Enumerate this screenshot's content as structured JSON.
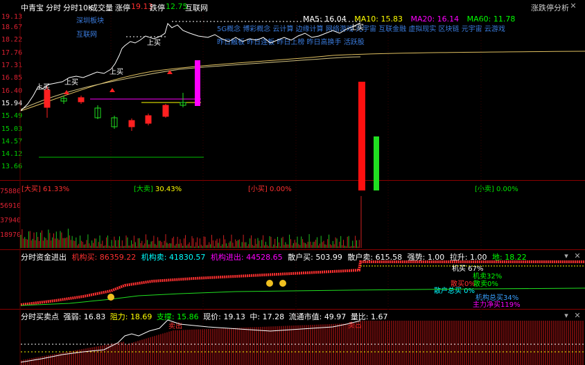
{
  "topbar": {
    "name": "中青宝",
    "tabs": [
      "分时",
      "分时10K",
      "成交量"
    ],
    "limit_up_label": "涨停",
    "limit_up_value": "19.13",
    "limit_down_label": "跌停",
    "limit_down_value": "12.75",
    "sector": "互联网",
    "right_label": "涨跌停分析"
  },
  "yaxis": [
    "19.13",
    "18.67",
    "18.22",
    "17.76",
    "17.31",
    "16.85",
    "16.40",
    "15.94",
    "15.49",
    "15.03",
    "14.57",
    "14.12",
    "13.66"
  ],
  "vol_axis": [
    "75880",
    "56910",
    "37940",
    "18970"
  ],
  "ma": {
    "ma5_label": "MA5:",
    "ma5": "16.04",
    "ma10_label": "MA10:",
    "ma10": "15.83",
    "ma20_label": "MA20:",
    "ma20": "16.14",
    "ma60_label": "MA60:",
    "ma60": "11.78"
  },
  "colors": {
    "ma5": "#ffffff",
    "ma10": "#ffff00",
    "ma20": "#ff00ff",
    "ma60": "#00ff00",
    "up": "#ff2020",
    "down": "#00e000"
  },
  "concepts_left": [
    "深圳板块",
    "互联网"
  ],
  "concepts_row1": "5G概念  博彩概念  云计算  边缘计算  网络游戏  元宇宙  互联金融  虚拟现实  区块链  元宇宙  云游戏",
  "concepts_row2": "昨日触板  昨日连板  昨日上榜  昨日高换手  活跃股",
  "signals": [
    "上买",
    "上买",
    "上买",
    "上买",
    "上买"
  ],
  "buy_sell": {
    "big_buy_label": "[大买]",
    "big_buy": "61.33%",
    "big_sell_label": "[大卖]",
    "big_sell": "30.43%",
    "small_buy_label": "[小买]",
    "small_buy": "0.00%",
    "small_sell_label": "[小卖]",
    "small_sell": "0.00%"
  },
  "fund": {
    "title": "分时资金进出",
    "inst_buy_label": "机构买:",
    "inst_buy": "86359.22",
    "inst_sell_label": "机构卖:",
    "inst_sell": "41830.57",
    "inst_in_label": "机构进出:",
    "inst_in": "44528.65",
    "retail_buy_label": "散户买:",
    "retail_buy": "503.99",
    "retail_sell_label": "散户卖:",
    "retail_sell": "615.58",
    "strong_label": "强势:",
    "strong": "1.00",
    "pull_label": "拉升:",
    "pull": "1.00",
    "land_label": "地:",
    "land": "18.22",
    "stats": [
      {
        "text": "机买 67%",
        "color": "#ffffff"
      },
      {
        "text": "机卖32%",
        "color": "#00ff00"
      },
      {
        "text": "散买0%",
        "color": "#ff3030"
      },
      {
        "text": "散卖0%",
        "color": "#00ff00"
      },
      {
        "text": "散户总买 0%",
        "color": "#00ffff"
      },
      {
        "text": "机构总买34%",
        "color": "#3aa0ff"
      },
      {
        "text": "主力净买119%",
        "color": "#ff00ff"
      }
    ]
  },
  "buypoint": {
    "title": "分时买卖点",
    "weak_label": "强弱:",
    "weak": "16.83",
    "resist_label": "阻力:",
    "resist": "18.69",
    "support_label": "支撑:",
    "support": "15.86",
    "now_label": "现价:",
    "now": "19.13",
    "mid_label": "中:",
    "mid": "17.28",
    "mcap_label": "流通市值:",
    "mcap": "49.97",
    "ratio_label": "量比:",
    "ratio": "1.67",
    "sell_sig": "卖出",
    "sell_sig2": "卖出"
  }
}
